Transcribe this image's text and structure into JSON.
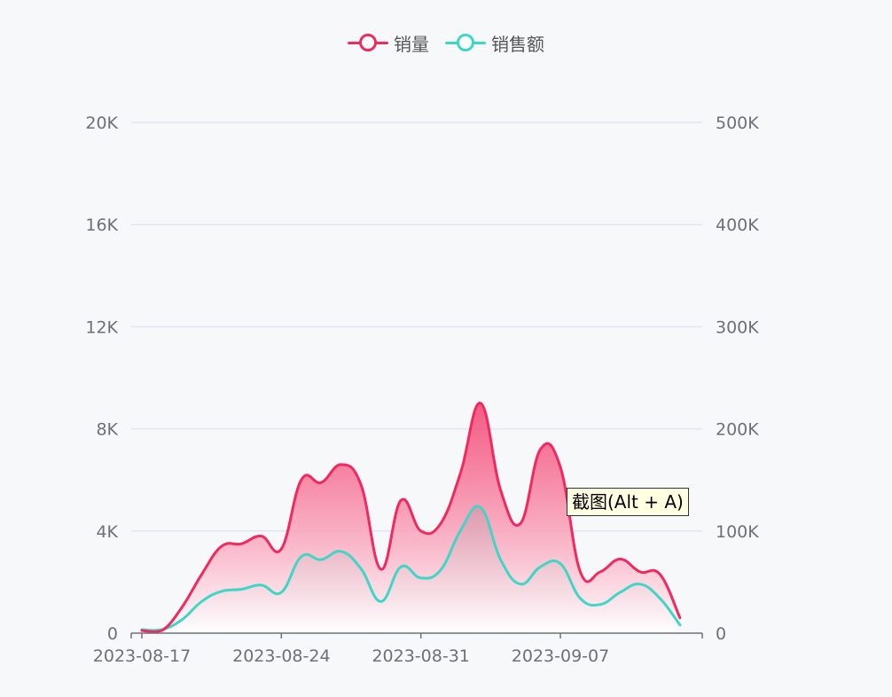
{
  "colors": {
    "sales_qty": "#f2285e",
    "sales_amount": "#3ed6c5",
    "grid": "#e0e6f1",
    "axis": "#6e7079",
    "background": "#f7f8fa"
  },
  "legend": {
    "items": [
      {
        "label": "销量",
        "color": "#f2285e"
      },
      {
        "label": "销售额",
        "color": "#3ed6c5"
      }
    ]
  },
  "tooltip": {
    "text": "截图(Alt + A)"
  },
  "chart_data": {
    "type": "area",
    "grid": true,
    "legend_position": "top-center",
    "x_tick_labels": [
      "2023-08-17",
      "2023-08-24",
      "2023-08-31",
      "2023-09-07"
    ],
    "y_left": {
      "ticks": [
        0,
        4000,
        8000,
        12000,
        16000,
        20000
      ],
      "tick_labels": [
        "0",
        "4K",
        "8K",
        "12K",
        "16K",
        "20K"
      ],
      "range": [
        0,
        20000
      ]
    },
    "y_right": {
      "ticks": [
        0,
        100000,
        200000,
        300000,
        400000,
        500000
      ],
      "tick_labels": [
        "0",
        "100K",
        "200K",
        "300K",
        "400K",
        "500K"
      ],
      "range": [
        0,
        500000
      ]
    },
    "x": [
      "2023-08-17",
      "2023-08-18",
      "2023-08-19",
      "2023-08-20",
      "2023-08-21",
      "2023-08-22",
      "2023-08-23",
      "2023-08-24",
      "2023-08-25",
      "2023-08-26",
      "2023-08-27",
      "2023-08-28",
      "2023-08-29",
      "2023-08-30",
      "2023-08-31",
      "2023-09-01",
      "2023-09-02",
      "2023-09-03",
      "2023-09-04",
      "2023-09-05",
      "2023-09-06",
      "2023-09-07",
      "2023-09-08",
      "2023-09-09",
      "2023-09-10",
      "2023-09-11",
      "2023-09-12",
      "2023-09-13"
    ],
    "series": [
      {
        "name": "销量",
        "axis": "left",
        "values": [
          100,
          100,
          1000,
          2300,
          3400,
          3500,
          3800,
          3300,
          6000,
          5900,
          6600,
          5800,
          2500,
          5200,
          4000,
          4300,
          6300,
          9000,
          5600,
          4300,
          7200,
          6500,
          2400,
          2400,
          2900,
          2400,
          2300,
          600
        ]
      },
      {
        "name": "销售额",
        "axis": "right",
        "values": [
          3500,
          3500,
          13000,
          31000,
          41000,
          43000,
          47000,
          40000,
          75000,
          72000,
          80000,
          63000,
          31000,
          65000,
          54000,
          62000,
          101000,
          123000,
          72000,
          48000,
          65000,
          68000,
          34000,
          28000,
          40000,
          48000,
          34000,
          8000
        ]
      }
    ]
  }
}
